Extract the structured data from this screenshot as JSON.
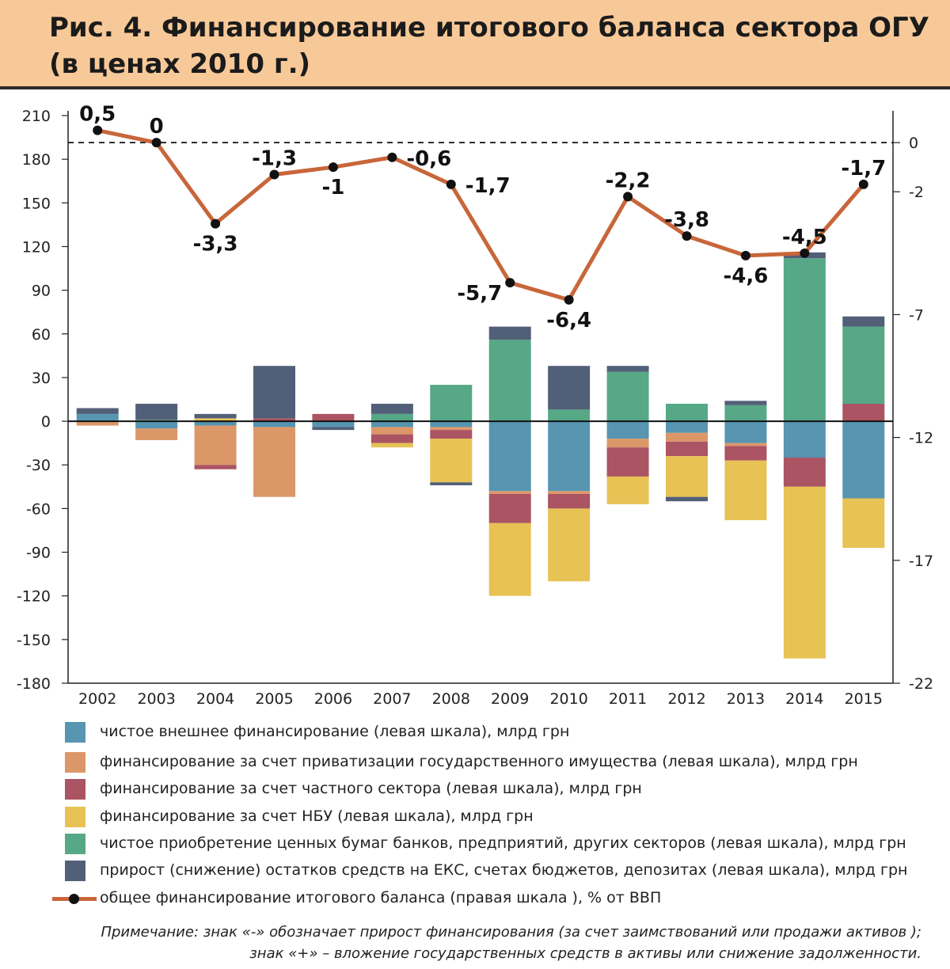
{
  "title": {
    "line1": "Рис. 4. Финансирование итогового баланса сектора ОГУ",
    "line2": "(в ценах 2010 г.)"
  },
  "chart_data": {
    "type": "bar",
    "stacked": true,
    "categories": [
      "2002",
      "2003",
      "2004",
      "2005",
      "2006",
      "2007",
      "2008",
      "2009",
      "2010",
      "2011",
      "2012",
      "2013",
      "2014",
      "2015"
    ],
    "left_axis": {
      "min": -180,
      "max": 210,
      "ticks": [
        210,
        180,
        150,
        120,
        90,
        60,
        30,
        0,
        -30,
        -60,
        -90,
        -120,
        -150,
        -180
      ]
    },
    "right_axis": {
      "min": -22,
      "max": 1.1,
      "ticks": [
        0,
        -2,
        -7,
        -12,
        -17,
        -22
      ]
    },
    "series": [
      {
        "name": "чистое внешнее финансирование (левая шкала), млрд грн",
        "color": "#5795b1",
        "values": [
          5,
          -5,
          -3,
          -4,
          -4,
          -4,
          -4,
          -48,
          -48,
          -12,
          -8,
          -15,
          -25,
          -53
        ]
      },
      {
        "name": "финансирование за счет приватизации государственного имущества (левая шкала), млрд грн",
        "color": "#dc9769",
        "values": [
          -3,
          -8,
          -27,
          -48,
          0,
          -5,
          -2,
          -2,
          -2,
          -6,
          -6,
          -2,
          0,
          0
        ]
      },
      {
        "name": "финансирование за счет  частного сектора (левая шкала), млрд грн",
        "color": "#ab5463",
        "values": [
          0,
          0,
          -3,
          2,
          5,
          -6,
          -6,
          -20,
          -10,
          -20,
          -10,
          -10,
          -20,
          12
        ]
      },
      {
        "name": "финансирование за счет НБУ (левая шкала), млрд грн",
        "color": "#e7c255",
        "values": [
          0,
          0,
          2,
          0,
          0,
          -3,
          -30,
          -50,
          -50,
          -19,
          -28,
          -41,
          -118,
          -34
        ]
      },
      {
        "name": "чистое приобретение ценных бумаг банков, предприятий, других секторов (левая шкала), млрд грн",
        "color": "#56a887",
        "values": [
          0,
          1,
          0,
          0,
          0,
          5,
          25,
          56,
          8,
          34,
          12,
          11,
          112,
          53
        ]
      },
      {
        "name": "прирост (снижение) остатков средств на ЕКС, счетах бюджетов, депозитах (левая шкала), млрд грн",
        "color": "#525f78",
        "values": [
          4,
          11,
          3,
          36,
          -2,
          7,
          -2,
          9,
          30,
          4,
          -3,
          3,
          4,
          7
        ]
      }
    ],
    "line_series": {
      "name": "общее финансирование итогового баланса (правая шкала ), % от ВВП",
      "color": "#c8663a",
      "values": [
        0.5,
        0,
        -3.3,
        -1.3,
        -1,
        -0.6,
        -1.7,
        -5.7,
        -6.4,
        -2.2,
        -3.8,
        -4.6,
        -4.5,
        -1.7
      ],
      "labels": [
        "0,5",
        "0",
        "-3,3",
        "-1,3",
        "-1",
        "-0,6",
        "-1,7",
        "-5,7",
        "-6,4",
        "-2,2",
        "-3,8",
        "-4,6",
        "-4,5",
        "-1,7"
      ],
      "label_positions": [
        "above",
        "above",
        "below",
        "above",
        "below",
        "right",
        "right",
        "left",
        "below",
        "above",
        "above",
        "below",
        "above",
        "above"
      ]
    },
    "reference_line": {
      "axis": "right",
      "value": 0,
      "style": "dashed"
    }
  },
  "legend": {
    "line_label": "общее финансирование итогового баланса (правая шкала ), % от ВВП"
  },
  "note": {
    "line1": "Примечание: знак «-» обозначает прирост финансирования (за счет заимствований или продажи активов );",
    "line2": "знак «+» – вложение государственных средств в активы или снижение задолженности."
  }
}
